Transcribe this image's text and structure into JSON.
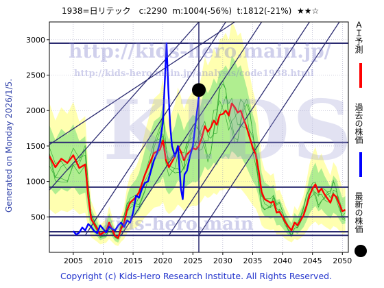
{
  "header": {
    "title": "1938=日リテック　c:2290  m:1004(-56%)  t:1812(-21%)  ★★☆"
  },
  "generated": "Generated on Monday 2026/1/5.",
  "copyright": "Copyright (c) Kids-Hero Research Institute. All Rights Reserved.",
  "watermark": {
    "url_big": "http://kids-hero.main.jp/",
    "url_small": "http://kids-hero.main.jp/analysis/code1938.html",
    "text_mid": "kids-hero.main",
    "text_big": "KIDS"
  },
  "legend": {
    "ai": "ＡＩ予測",
    "past": "過去の株価",
    "latest": "最新の株価"
  },
  "colors": {
    "ai": "#ff0000",
    "past": "#0000ff",
    "latest": "#000000",
    "band_outer": "#ffffb0",
    "band_inner": "#b0ee90",
    "grid": "#2a2a70"
  },
  "chart_data": {
    "type": "line",
    "xlim": [
      2001,
      2051
    ],
    "ylim": [
      0,
      3250
    ],
    "xticks": [
      2005,
      2010,
      2015,
      2020,
      2025,
      2030,
      2035,
      2040,
      2045,
      2050
    ],
    "yticks": [
      500,
      1000,
      1500,
      2000,
      2500,
      3000
    ],
    "hlines": [
      240,
      290,
      500,
      920,
      1550,
      2950
    ],
    "latest_point": {
      "x": 2026.0,
      "y": 2290
    },
    "current_year": 2026.0,
    "series": [
      {
        "name": "ＡＩ予測",
        "color": "#ff0000",
        "points": [
          [
            2001.0,
            1360
          ],
          [
            2002.0,
            1200
          ],
          [
            2003.0,
            1320
          ],
          [
            2004.0,
            1260
          ],
          [
            2005.0,
            1370
          ],
          [
            2006.0,
            1190
          ],
          [
            2007.0,
            1240
          ],
          [
            2007.5,
            780
          ],
          [
            2008.0,
            470
          ],
          [
            2009.0,
            330
          ],
          [
            2009.5,
            250
          ],
          [
            2010.5,
            300
          ],
          [
            2011.0,
            420
          ],
          [
            2012.0,
            230
          ],
          [
            2012.5,
            200
          ],
          [
            2013.0,
            330
          ],
          [
            2013.5,
            420
          ],
          [
            2014.0,
            600
          ],
          [
            2014.5,
            700
          ],
          [
            2015.5,
            780
          ],
          [
            2016.0,
            850
          ],
          [
            2017.0,
            1100
          ],
          [
            2018.0,
            1300
          ],
          [
            2018.5,
            1400
          ],
          [
            2019.5,
            1450
          ],
          [
            2020.0,
            1580
          ],
          [
            2020.5,
            1300
          ],
          [
            2021.0,
            1200
          ],
          [
            2022.0,
            1350
          ],
          [
            2022.5,
            1500
          ],
          [
            2023.0,
            1420
          ],
          [
            2023.5,
            1300
          ],
          [
            2024.0,
            1380
          ],
          [
            2025.0,
            1470
          ],
          [
            2025.5,
            1450
          ],
          [
            2026.0,
            1500
          ],
          [
            2026.5,
            1620
          ],
          [
            2027.0,
            1780
          ],
          [
            2027.5,
            1700
          ],
          [
            2028.0,
            1760
          ],
          [
            2028.5,
            1860
          ],
          [
            2029.0,
            1800
          ],
          [
            2029.5,
            1940
          ],
          [
            2030.0,
            1950
          ],
          [
            2030.5,
            2000
          ],
          [
            2031.0,
            1930
          ],
          [
            2031.5,
            2100
          ],
          [
            2032.0,
            2050
          ],
          [
            2032.5,
            1970
          ],
          [
            2033.0,
            2000
          ],
          [
            2033.5,
            1880
          ],
          [
            2034.0,
            1760
          ],
          [
            2034.5,
            1620
          ],
          [
            2035.0,
            1480
          ],
          [
            2035.5,
            1380
          ],
          [
            2036.0,
            1150
          ],
          [
            2036.5,
            850
          ],
          [
            2037.0,
            750
          ],
          [
            2038.0,
            700
          ],
          [
            2038.5,
            720
          ],
          [
            2039.0,
            560
          ],
          [
            2039.5,
            570
          ],
          [
            2040.0,
            500
          ],
          [
            2040.5,
            420
          ],
          [
            2041.0,
            360
          ],
          [
            2041.5,
            310
          ],
          [
            2042.0,
            420
          ],
          [
            2042.5,
            380
          ],
          [
            2043.0,
            450
          ],
          [
            2043.5,
            520
          ],
          [
            2044.0,
            650
          ],
          [
            2044.5,
            800
          ],
          [
            2045.0,
            900
          ],
          [
            2045.5,
            960
          ],
          [
            2046.0,
            850
          ],
          [
            2046.5,
            900
          ],
          [
            2047.0,
            820
          ],
          [
            2047.5,
            760
          ],
          [
            2048.0,
            700
          ],
          [
            2048.5,
            820
          ],
          [
            2049.0,
            780
          ],
          [
            2049.5,
            680
          ],
          [
            2050.0,
            580
          ],
          [
            2050.5,
            600
          ]
        ]
      },
      {
        "name": "過去の株価",
        "color": "#0000ff",
        "points": [
          [
            2005.0,
            300
          ],
          [
            2005.5,
            250
          ],
          [
            2006.0,
            280
          ],
          [
            2006.5,
            350
          ],
          [
            2007.0,
            310
          ],
          [
            2007.5,
            400
          ],
          [
            2008.0,
            360
          ],
          [
            2008.5,
            300
          ],
          [
            2009.0,
            270
          ],
          [
            2009.5,
            380
          ],
          [
            2010.0,
            330
          ],
          [
            2010.5,
            280
          ],
          [
            2011.0,
            360
          ],
          [
            2011.5,
            330
          ],
          [
            2012.0,
            310
          ],
          [
            2012.5,
            380
          ],
          [
            2013.0,
            420
          ],
          [
            2013.5,
            360
          ],
          [
            2014.0,
            450
          ],
          [
            2014.5,
            420
          ],
          [
            2015.0,
            560
          ],
          [
            2015.5,
            800
          ],
          [
            2016.0,
            770
          ],
          [
            2016.5,
            900
          ],
          [
            2017.0,
            980
          ],
          [
            2017.5,
            1000
          ],
          [
            2018.0,
            1150
          ],
          [
            2018.5,
            1300
          ],
          [
            2019.0,
            1400
          ],
          [
            2019.5,
            1550
          ],
          [
            2020.0,
            1850
          ],
          [
            2020.3,
            2400
          ],
          [
            2020.6,
            2950
          ],
          [
            2020.9,
            2300
          ],
          [
            2021.2,
            1800
          ],
          [
            2021.5,
            1500
          ],
          [
            2022.0,
            1350
          ],
          [
            2022.5,
            1500
          ],
          [
            2023.0,
            900
          ],
          [
            2023.3,
            750
          ],
          [
            2023.6,
            1100
          ],
          [
            2024.0,
            1150
          ],
          [
            2024.5,
            1350
          ],
          [
            2025.0,
            1500
          ],
          [
            2025.5,
            1850
          ],
          [
            2026.0,
            2200
          ]
        ]
      }
    ],
    "diagonals": [
      [
        [
          2007.0,
          240
        ],
        [
          2030.5,
          3250
        ]
      ],
      [
        [
          2013.0,
          240
        ],
        [
          2036.5,
          3250
        ]
      ],
      [
        [
          2021.0,
          240
        ],
        [
          2044.5,
          3250
        ]
      ],
      [
        [
          2026.0,
          240
        ],
        [
          2049.5,
          3250
        ]
      ],
      [
        [
          2001.0,
          1520
        ],
        [
          2032.0,
          3250
        ]
      ],
      [
        [
          2001.0,
          880
        ],
        [
          2026.0,
          3250
        ]
      ]
    ]
  }
}
